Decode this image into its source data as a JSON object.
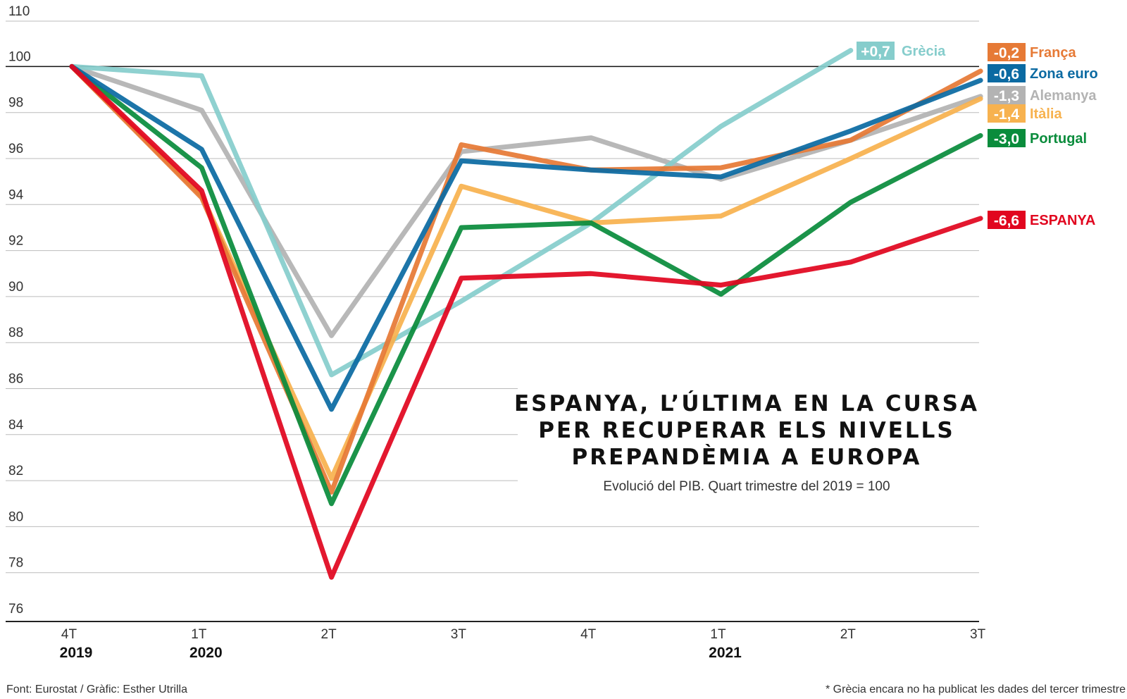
{
  "chart_data": {
    "type": "line",
    "title_lines": [
      "ESPANYA, L’ÚLTIMA EN LA CURSA",
      "PER RECUPERAR ELS NIVELLS",
      "PREPANDÈMIA A EUROPA"
    ],
    "subtitle": "Evolució del PIB. Quart trimestre del 2019 = 100",
    "x": [
      "4T",
      "1T",
      "2T",
      "3T",
      "4T",
      "1T",
      "2T",
      "3T"
    ],
    "x_years": [
      "2019",
      "2020",
      "",
      "",
      "",
      "2021",
      "",
      ""
    ],
    "ylim": [
      76,
      110
    ],
    "yticks": [
      76,
      78,
      80,
      82,
      84,
      86,
      88,
      90,
      92,
      94,
      96,
      98,
      100,
      110
    ],
    "reference_line": 100,
    "series": [
      {
        "name": "Alemanya",
        "badge": "-1,3",
        "color": "#b3b3b3",
        "values": [
          100,
          98.1,
          88.3,
          96.3,
          96.9,
          95.1,
          96.8,
          98.7
        ]
      },
      {
        "name": "Grècia",
        "badge": "+0,7",
        "color": "#86cdcc",
        "values": [
          100,
          99.6,
          86.6,
          89.8,
          93.2,
          97.4,
          100.7,
          null
        ]
      },
      {
        "name": "Itàlia",
        "badge": "-1,4",
        "color": "#f7b24f",
        "values": [
          100,
          94.4,
          82.1,
          94.8,
          93.2,
          93.5,
          96.0,
          98.6
        ]
      },
      {
        "name": "França",
        "badge": "-0,2",
        "color": "#e67a36",
        "values": [
          100,
          94.3,
          81.5,
          96.6,
          95.5,
          95.6,
          96.8,
          99.8
        ]
      },
      {
        "name": "Portugal",
        "badge": "-3,0",
        "color": "#0a8c3c",
        "values": [
          100,
          95.6,
          81.0,
          93.0,
          93.2,
          90.1,
          94.1,
          97.0
        ]
      },
      {
        "name": "Zona euro",
        "badge": "-0,6",
        "color": "#0b6aa2",
        "values": [
          100,
          96.4,
          85.1,
          95.9,
          95.5,
          95.2,
          97.2,
          99.4
        ]
      },
      {
        "name": "ESPANYA",
        "badge": "-6,6",
        "color": "#e1061f",
        "values": [
          100,
          94.6,
          77.8,
          90.8,
          91.0,
          90.5,
          91.5,
          93.4
        ]
      }
    ]
  },
  "footer": {
    "source": "Font: Eurostat / Gràfic: Esther Utrilla",
    "note": "* Grècia encara no ha publicat les dades del tercer trimestre"
  }
}
